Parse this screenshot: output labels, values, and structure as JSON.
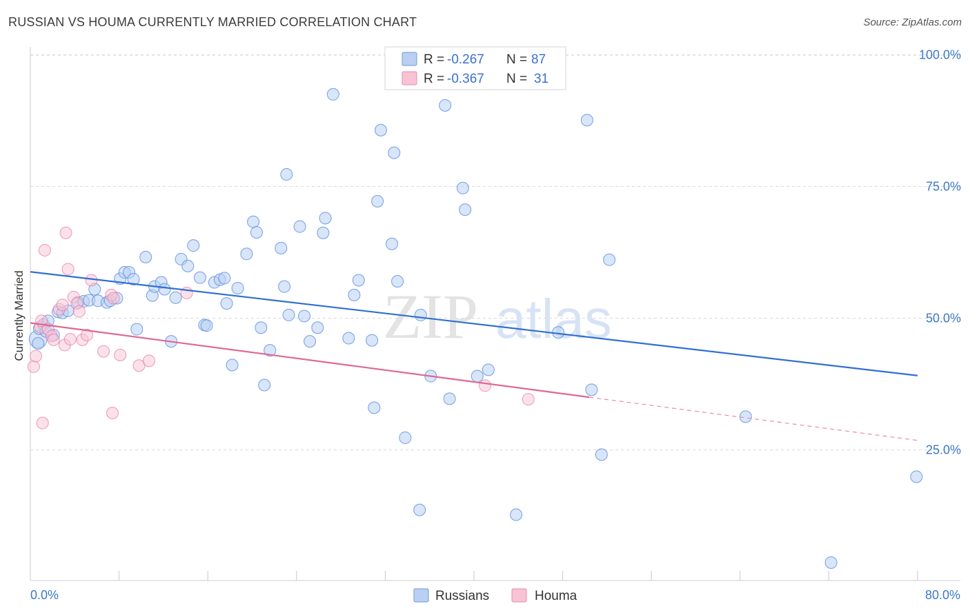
{
  "header": {
    "title": "RUSSIAN VS HOUMA CURRENTLY MARRIED CORRELATION CHART",
    "source": "Source: ZipAtlas.com"
  },
  "colors": {
    "russians": "#5b8fe0",
    "russians_fill": "#b9d0f2",
    "houma": "#e57aa0",
    "houma_fill": "#f7c3d5",
    "axis_label": "#3b78c9",
    "grid": "#d9d9d9"
  },
  "legend": {
    "russians": {
      "r_label": "R =",
      "r_value": "-0.267",
      "n_label": "N =",
      "n_value": "87"
    },
    "houma": {
      "r_label": "R =",
      "r_value": "-0.367",
      "n_label": "N =",
      "n_value": "31"
    }
  },
  "bottom_legend": {
    "russians": "Russians",
    "houma": "Houma"
  },
  "watermark": {
    "zip": "ZIP",
    "atlas": "atlas"
  },
  "chart_data": {
    "type": "scatter",
    "xlabel": "",
    "ylabel": "Currently Married",
    "xlim": [
      0,
      80
    ],
    "ylim": [
      0,
      105
    ],
    "x_tick_labels": [
      {
        "value": 0,
        "label": "0.0%"
      },
      {
        "value": 80,
        "label": "80.0%"
      }
    ],
    "y_tick_labels": [
      {
        "value": 25,
        "label": "25.0%"
      },
      {
        "value": 50,
        "label": "50.0%"
      },
      {
        "value": 75,
        "label": "75.0%"
      },
      {
        "value": 100,
        "label": "100.0%"
      }
    ],
    "series": [
      {
        "name": "Russians",
        "trend": {
          "x": [
            0,
            80
          ],
          "y": [
            58.8,
            39.1
          ]
        },
        "points": [
          [
            0.7,
            45.2
          ],
          [
            0.8,
            48.0
          ],
          [
            1.2,
            48.8
          ],
          [
            1.4,
            47.5
          ],
          [
            1.6,
            49.5
          ],
          [
            2.1,
            46.8
          ],
          [
            2.5,
            51.2
          ],
          [
            2.9,
            51.0
          ],
          [
            3.4,
            51.4
          ],
          [
            4.3,
            53.0
          ],
          [
            4.8,
            53.2
          ],
          [
            5.3,
            53.4
          ],
          [
            5.8,
            55.5
          ],
          [
            6.1,
            53.3
          ],
          [
            6.9,
            53.0
          ],
          [
            7.2,
            53.3
          ],
          [
            7.8,
            53.8
          ],
          [
            8.1,
            57.5
          ],
          [
            8.5,
            58.7
          ],
          [
            8.9,
            58.7
          ],
          [
            9.3,
            57.4
          ],
          [
            9.6,
            47.9
          ],
          [
            10.4,
            61.6
          ],
          [
            11.0,
            54.3
          ],
          [
            11.2,
            56.0
          ],
          [
            11.8,
            56.8
          ],
          [
            12.1,
            55.5
          ],
          [
            12.7,
            45.6
          ],
          [
            13.1,
            53.9
          ],
          [
            13.6,
            61.2
          ],
          [
            14.2,
            59.9
          ],
          [
            14.7,
            63.8
          ],
          [
            15.3,
            57.7
          ],
          [
            15.7,
            48.7
          ],
          [
            15.9,
            48.6
          ],
          [
            16.6,
            56.8
          ],
          [
            17.1,
            57.3
          ],
          [
            17.5,
            57.6
          ],
          [
            17.7,
            52.8
          ],
          [
            18.2,
            41.1
          ],
          [
            18.7,
            55.7
          ],
          [
            19.5,
            62.2
          ],
          [
            20.1,
            68.3
          ],
          [
            20.4,
            66.3
          ],
          [
            20.8,
            48.2
          ],
          [
            21.1,
            37.3
          ],
          [
            21.6,
            43.9
          ],
          [
            22.6,
            63.3
          ],
          [
            22.9,
            56.0
          ],
          [
            23.3,
            50.6
          ],
          [
            23.1,
            77.3
          ],
          [
            24.3,
            67.4
          ],
          [
            24.7,
            50.4
          ],
          [
            25.2,
            45.6
          ],
          [
            25.9,
            48.2
          ],
          [
            26.4,
            66.2
          ],
          [
            26.6,
            69.0
          ],
          [
            27.3,
            92.5
          ],
          [
            28.7,
            46.2
          ],
          [
            29.2,
            54.4
          ],
          [
            29.6,
            57.2
          ],
          [
            30.8,
            45.8
          ],
          [
            31.0,
            33.0
          ],
          [
            31.3,
            72.2
          ],
          [
            31.6,
            85.7
          ],
          [
            32.6,
            64.1
          ],
          [
            32.8,
            81.4
          ],
          [
            33.1,
            57.0
          ],
          [
            33.8,
            27.3
          ],
          [
            35.1,
            13.6
          ],
          [
            35.2,
            50.6
          ],
          [
            36.1,
            39.0
          ],
          [
            37.8,
            34.7
          ],
          [
            37.4,
            90.4
          ],
          [
            39.0,
            74.7
          ],
          [
            39.2,
            70.6
          ],
          [
            40.3,
            39.0
          ],
          [
            41.3,
            40.2
          ],
          [
            43.8,
            12.7
          ],
          [
            47.6,
            47.3
          ],
          [
            50.2,
            87.6
          ],
          [
            50.6,
            36.4
          ],
          [
            51.5,
            24.1
          ],
          [
            52.2,
            61.1
          ],
          [
            64.5,
            31.3
          ],
          [
            72.2,
            3.6
          ],
          [
            79.9,
            19.9
          ]
        ]
      },
      {
        "name": "Houma",
        "trend": {
          "x": [
            0,
            50.4
          ],
          "y": [
            49.1,
            35.0
          ]
        },
        "trend_dashed": {
          "x": [
            50.4,
            80
          ],
          "y": [
            35.0,
            26.8
          ]
        },
        "points": [
          [
            0.3,
            40.8
          ],
          [
            0.5,
            42.8
          ],
          [
            0.9,
            48.3
          ],
          [
            1.0,
            49.5
          ],
          [
            1.1,
            30.1
          ],
          [
            1.3,
            62.9
          ],
          [
            1.6,
            47.9
          ],
          [
            1.9,
            46.6
          ],
          [
            2.1,
            45.9
          ],
          [
            2.6,
            51.7
          ],
          [
            2.9,
            52.5
          ],
          [
            3.1,
            44.9
          ],
          [
            3.2,
            66.2
          ],
          [
            3.4,
            59.3
          ],
          [
            3.6,
            46.0
          ],
          [
            3.9,
            54.0
          ],
          [
            4.2,
            52.8
          ],
          [
            4.4,
            51.3
          ],
          [
            4.7,
            45.9
          ],
          [
            5.1,
            46.8
          ],
          [
            5.5,
            57.2
          ],
          [
            6.6,
            43.7
          ],
          [
            7.3,
            54.4
          ],
          [
            7.5,
            53.8
          ],
          [
            7.4,
            32.0
          ],
          [
            8.1,
            43.0
          ],
          [
            9.8,
            41.0
          ],
          [
            10.7,
            41.9
          ],
          [
            14.1,
            54.8
          ],
          [
            41.0,
            37.2
          ],
          [
            44.9,
            34.6
          ]
        ]
      }
    ]
  }
}
